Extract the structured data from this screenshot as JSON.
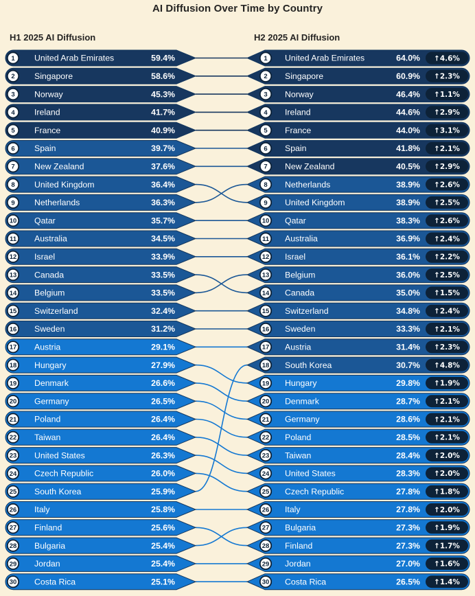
{
  "title": "AI Diffusion Over Time by Country",
  "columns": {
    "h1_label": "H1 2025 AI Diffusion",
    "h2_label": "H2 2025 AI Diffusion"
  },
  "icons": {
    "up_arrow": "↑"
  },
  "colors": {
    "background": "#FAF1DB",
    "title_text": "#252423",
    "header_text": "#252423",
    "bin_high": "#17375F",
    "bin_mid": "#1B5796",
    "bin_low": "#1478D2",
    "pill_border": "#12365E",
    "pill_text": "#FFFFFF",
    "rank_circle_fill": "#FFFFFF",
    "rank_circle_border": "#0D2238",
    "rank_text": "#0D2238",
    "badge_fill": "#0D2238",
    "badge_text": "#FFFFFF"
  },
  "thresholds": {
    "high_min": 40,
    "mid_min": 30
  },
  "chart_data": {
    "type": "table",
    "subtype": "ranked-bump-slope",
    "title": "AI Diffusion Over Time by Country",
    "column_labels": [
      "H1 2025 AI Diffusion",
      "H2 2025 AI Diffusion"
    ],
    "value_format": "percent-one-decimal",
    "legend": "none",
    "countries": [
      {
        "name": "United Arab Emirates",
        "h1_rank": 1,
        "h1_value": 59.4,
        "h2_rank": 1,
        "h2_value": 64.0,
        "change_value": 4.6,
        "change_direction": "up"
      },
      {
        "name": "Singapore",
        "h1_rank": 2,
        "h1_value": 58.6,
        "h2_rank": 2,
        "h2_value": 60.9,
        "change_value": 2.3,
        "change_direction": "up"
      },
      {
        "name": "Norway",
        "h1_rank": 3,
        "h1_value": 45.3,
        "h2_rank": 3,
        "h2_value": 46.4,
        "change_value": 1.1,
        "change_direction": "up"
      },
      {
        "name": "Ireland",
        "h1_rank": 4,
        "h1_value": 41.7,
        "h2_rank": 4,
        "h2_value": 44.6,
        "change_value": 2.9,
        "change_direction": "up"
      },
      {
        "name": "France",
        "h1_rank": 5,
        "h1_value": 40.9,
        "h2_rank": 5,
        "h2_value": 44.0,
        "change_value": 3.1,
        "change_direction": "up"
      },
      {
        "name": "Spain",
        "h1_rank": 6,
        "h1_value": 39.7,
        "h2_rank": 6,
        "h2_value": 41.8,
        "change_value": 2.1,
        "change_direction": "up"
      },
      {
        "name": "New Zealand",
        "h1_rank": 7,
        "h1_value": 37.6,
        "h2_rank": 7,
        "h2_value": 40.5,
        "change_value": 2.9,
        "change_direction": "up"
      },
      {
        "name": "United Kingdom",
        "h1_rank": 8,
        "h1_value": 36.4,
        "h2_rank": 9,
        "h2_value": 38.9,
        "change_value": 2.5,
        "change_direction": "up"
      },
      {
        "name": "Netherlands",
        "h1_rank": 9,
        "h1_value": 36.3,
        "h2_rank": 8,
        "h2_value": 38.9,
        "change_value": 2.6,
        "change_direction": "up"
      },
      {
        "name": "Qatar",
        "h1_rank": 10,
        "h1_value": 35.7,
        "h2_rank": 10,
        "h2_value": 38.3,
        "change_value": 2.6,
        "change_direction": "up"
      },
      {
        "name": "Australia",
        "h1_rank": 11,
        "h1_value": 34.5,
        "h2_rank": 11,
        "h2_value": 36.9,
        "change_value": 2.4,
        "change_direction": "up"
      },
      {
        "name": "Israel",
        "h1_rank": 12,
        "h1_value": 33.9,
        "h2_rank": 12,
        "h2_value": 36.1,
        "change_value": 2.2,
        "change_direction": "up"
      },
      {
        "name": "Canada",
        "h1_rank": 13,
        "h1_value": 33.5,
        "h2_rank": 14,
        "h2_value": 35.0,
        "change_value": 1.5,
        "change_direction": "up"
      },
      {
        "name": "Belgium",
        "h1_rank": 14,
        "h1_value": 33.5,
        "h2_rank": 13,
        "h2_value": 36.0,
        "change_value": 2.5,
        "change_direction": "up"
      },
      {
        "name": "Switzerland",
        "h1_rank": 15,
        "h1_value": 32.4,
        "h2_rank": 15,
        "h2_value": 34.8,
        "change_value": 2.4,
        "change_direction": "up"
      },
      {
        "name": "Sweden",
        "h1_rank": 16,
        "h1_value": 31.2,
        "h2_rank": 16,
        "h2_value": 33.3,
        "change_value": 2.1,
        "change_direction": "up"
      },
      {
        "name": "Austria",
        "h1_rank": 17,
        "h1_value": 29.1,
        "h2_rank": 17,
        "h2_value": 31.4,
        "change_value": 2.3,
        "change_direction": "up"
      },
      {
        "name": "Hungary",
        "h1_rank": 18,
        "h1_value": 27.9,
        "h2_rank": 19,
        "h2_value": 29.8,
        "change_value": 1.9,
        "change_direction": "up"
      },
      {
        "name": "Denmark",
        "h1_rank": 19,
        "h1_value": 26.6,
        "h2_rank": 20,
        "h2_value": 28.7,
        "change_value": 2.1,
        "change_direction": "up"
      },
      {
        "name": "Germany",
        "h1_rank": 20,
        "h1_value": 26.5,
        "h2_rank": 21,
        "h2_value": 28.6,
        "change_value": 2.1,
        "change_direction": "up"
      },
      {
        "name": "Poland",
        "h1_rank": 21,
        "h1_value": 26.4,
        "h2_rank": 22,
        "h2_value": 28.5,
        "change_value": 2.1,
        "change_direction": "up"
      },
      {
        "name": "Taiwan",
        "h1_rank": 22,
        "h1_value": 26.4,
        "h2_rank": 23,
        "h2_value": 28.4,
        "change_value": 2.0,
        "change_direction": "up"
      },
      {
        "name": "United States",
        "h1_rank": 23,
        "h1_value": 26.3,
        "h2_rank": 24,
        "h2_value": 28.3,
        "change_value": 2.0,
        "change_direction": "up"
      },
      {
        "name": "Czech Republic",
        "h1_rank": 24,
        "h1_value": 26.0,
        "h2_rank": 25,
        "h2_value": 27.8,
        "change_value": 1.8,
        "change_direction": "up"
      },
      {
        "name": "South Korea",
        "h1_rank": 25,
        "h1_value": 25.9,
        "h2_rank": 18,
        "h2_value": 30.7,
        "change_value": 4.8,
        "change_direction": "up"
      },
      {
        "name": "Italy",
        "h1_rank": 26,
        "h1_value": 25.8,
        "h2_rank": 26,
        "h2_value": 27.8,
        "change_value": 2.0,
        "change_direction": "up"
      },
      {
        "name": "Finland",
        "h1_rank": 27,
        "h1_value": 25.6,
        "h2_rank": 28,
        "h2_value": 27.3,
        "change_value": 1.7,
        "change_direction": "up"
      },
      {
        "name": "Bulgaria",
        "h1_rank": 28,
        "h1_value": 25.4,
        "h2_rank": 27,
        "h2_value": 27.3,
        "change_value": 1.9,
        "change_direction": "up"
      },
      {
        "name": "Jordan",
        "h1_rank": 29,
        "h1_value": 25.4,
        "h2_rank": 29,
        "h2_value": 27.0,
        "change_value": 1.6,
        "change_direction": "up"
      },
      {
        "name": "Costa Rica",
        "h1_rank": 30,
        "h1_value": 25.1,
        "h2_rank": 30,
        "h2_value": 26.5,
        "change_value": 1.4,
        "change_direction": "up"
      }
    ]
  }
}
